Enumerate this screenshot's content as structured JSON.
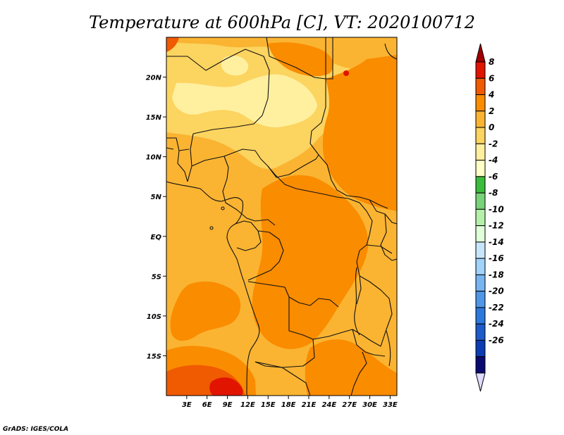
{
  "title": "Temperature at 600hPa [C], VT: 2020100712",
  "credit": "GrADS: IGES/COLA",
  "map": {
    "lon_range": [
      0,
      34
    ],
    "lat_range": [
      -20,
      25
    ],
    "lat_ticks": [
      {
        "value": 20,
        "label": "20N"
      },
      {
        "value": 15,
        "label": "15N"
      },
      {
        "value": 10,
        "label": "10N"
      },
      {
        "value": 5,
        "label": "5N"
      },
      {
        "value": 0,
        "label": "EQ"
      },
      {
        "value": -5,
        "label": "5S"
      },
      {
        "value": -10,
        "label": "10S"
      },
      {
        "value": -15,
        "label": "15S"
      }
    ],
    "lon_ticks": [
      {
        "value": 3,
        "label": "3E"
      },
      {
        "value": 6,
        "label": "6E"
      },
      {
        "value": 9,
        "label": "9E"
      },
      {
        "value": 12,
        "label": "12E"
      },
      {
        "value": 15,
        "label": "15E"
      },
      {
        "value": 18,
        "label": "18E"
      },
      {
        "value": 21,
        "label": "21E"
      },
      {
        "value": 24,
        "label": "24E"
      },
      {
        "value": 27,
        "label": "27E"
      },
      {
        "value": 30,
        "label": "30E"
      },
      {
        "value": 33,
        "label": "33E"
      }
    ]
  },
  "colorbar": {
    "levels": [
      "8",
      "6",
      "4",
      "2",
      "0",
      "-2",
      "-4",
      "-6",
      "-8",
      "-10",
      "-12",
      "-14",
      "-16",
      "-18",
      "-20",
      "-22",
      "-24",
      "-26"
    ],
    "colors": [
      "#a00000",
      "#e11400",
      "#f05a00",
      "#fa8c00",
      "#fab432",
      "#fcd460",
      "#fff0a0",
      "#ffffc8",
      "#3cbc3c",
      "#78d278",
      "#b4f0aa",
      "#e0ffda",
      "#c8e6fa",
      "#a0d2fa",
      "#78b4f0",
      "#5096e6",
      "#2d78dc",
      "#1e5ac8",
      "#0c3cb4",
      "#0a0a70",
      "#e0dcff"
    ]
  }
}
